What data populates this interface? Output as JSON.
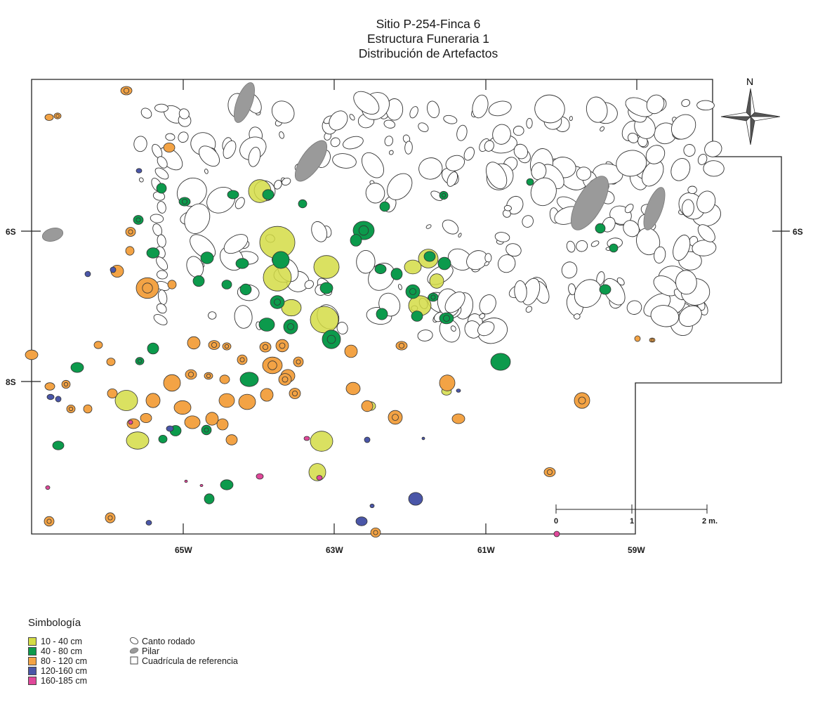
{
  "title": {
    "line1": "Sitio P-254-Finca 6",
    "line2": "Estructura Funeraria 1",
    "line3": "Distribución de Artefactos"
  },
  "north_label": "N",
  "axis": {
    "x_labels": [
      "65W",
      "63W",
      "61W",
      "59W"
    ],
    "y_labels_left": [
      "6S",
      "8S"
    ],
    "y_labels_right": [
      "6S"
    ]
  },
  "legend": {
    "title": "Simbología",
    "depth_classes": [
      {
        "label": "10 - 40 cm",
        "color": "#d4dc45"
      },
      {
        "label": "40 - 80 cm",
        "color": "#0c9a4c"
      },
      {
        "label": "80 - 120 cm",
        "color": "#f3a345"
      },
      {
        "label": "120-160 cm",
        "color": "#4a56a8"
      },
      {
        "label": "160-185 cm",
        "color": "#e0489a"
      }
    ],
    "features": [
      {
        "label": "Canto rodado",
        "icon": "ellipse-outline-icon"
      },
      {
        "label": "Pilar",
        "icon": "gray-ellipse-icon",
        "color": "#9a9a9a"
      },
      {
        "label": "Cuadrícula de referencia",
        "icon": "square-outline-icon"
      }
    ]
  },
  "scale_bar": {
    "labels": [
      "0",
      "1",
      "2 m."
    ]
  }
}
